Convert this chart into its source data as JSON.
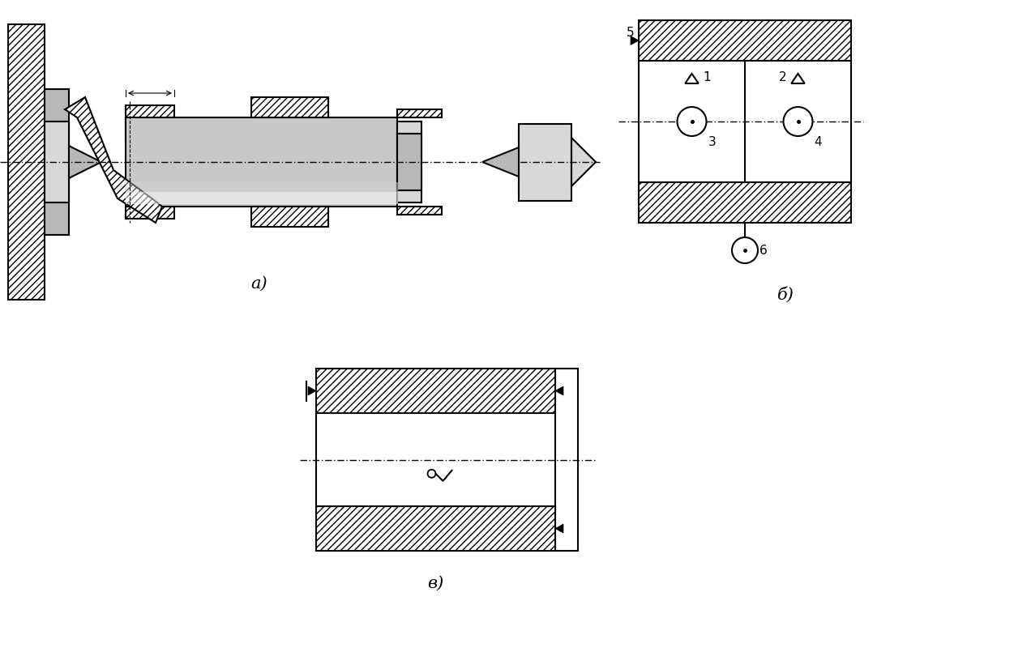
{
  "bg_color": "#ffffff",
  "line_color": "#000000",
  "gray_light": "#d8d8d8",
  "gray_mid": "#b8b8b8",
  "gray_dark": "#989898",
  "gray_shaft": "#c8c8c8",
  "label_a": "а)",
  "label_b": "б)",
  "label_v": "в)"
}
